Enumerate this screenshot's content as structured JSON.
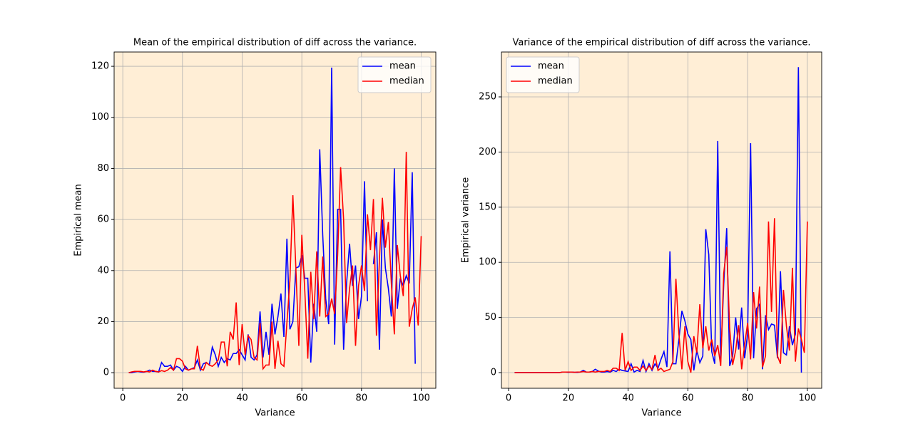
{
  "chart_data": [
    {
      "type": "line",
      "title": "Mean of the empirical distribution of diff across the variance.",
      "xlabel": "Variance",
      "ylabel": "Empirical mean",
      "x": [
        2,
        3,
        4,
        5,
        6,
        7,
        8,
        9,
        10,
        11,
        12,
        13,
        14,
        15,
        16,
        17,
        18,
        19,
        20,
        21,
        22,
        23,
        24,
        25,
        26,
        27,
        28,
        29,
        30,
        31,
        32,
        33,
        34,
        35,
        36,
        37,
        38,
        39,
        40,
        41,
        42,
        43,
        44,
        45,
        46,
        47,
        48,
        49,
        50,
        51,
        52,
        53,
        54,
        55,
        56,
        57,
        58,
        59,
        60,
        61,
        62,
        63,
        64,
        65,
        66,
        67,
        68,
        69,
        70,
        71,
        72,
        73,
        74,
        75,
        76,
        77,
        78,
        79,
        80,
        81,
        82,
        83,
        84,
        85,
        86,
        87,
        88,
        89,
        90,
        91,
        92,
        93,
        94,
        95,
        96,
        97,
        98,
        99,
        100
      ],
      "series": [
        {
          "name": "mean",
          "color": "#0000ff",
          "values": [
            0,
            0,
            0.3,
            0.5,
            0.3,
            0.2,
            0.5,
            1,
            0.5,
            0.5,
            0.3,
            4,
            2.5,
            2.5,
            3,
            1,
            2.5,
            2,
            0.5,
            2.5,
            1,
            1.5,
            2,
            5,
            1,
            3.5,
            4,
            3,
            10,
            7,
            2.5,
            6,
            4,
            5.5,
            5,
            7.5,
            7.5,
            9,
            7,
            5,
            15,
            6,
            5,
            7,
            24,
            6,
            16,
            7,
            27,
            15,
            22,
            31,
            14,
            52.5,
            17,
            20,
            41,
            41.5,
            46,
            37,
            37,
            4,
            27,
            16,
            87.5,
            54,
            29,
            19,
            119.5,
            11,
            64,
            64,
            9,
            35,
            50.5,
            34,
            42,
            21,
            30,
            75,
            28,
            null,
            42.5,
            55,
            9,
            60,
            41,
            33,
            22,
            80,
            25,
            37,
            34,
            38,
            35,
            78.5,
            3.5,
            null,
            null
          ]
        },
        {
          "name": "median",
          "color": "#ff0000",
          "values": [
            0,
            0.3,
            0.5,
            0.5,
            0.5,
            0.3,
            0.5,
            0.3,
            1,
            0.5,
            0.3,
            0.8,
            0.5,
            1,
            2,
            1,
            5.5,
            5.5,
            4.5,
            1.5,
            1,
            1.5,
            1.5,
            10.5,
            1.5,
            1,
            4,
            3,
            2.5,
            3.5,
            5,
            12,
            12,
            2.5,
            16,
            13,
            27.5,
            3,
            19,
            7,
            14.5,
            13,
            6,
            5,
            19.5,
            1.5,
            3,
            3,
            20,
            1.5,
            12.5,
            3.5,
            2.5,
            19.5,
            36,
            69.5,
            41,
            10.5,
            54,
            32,
            5.5,
            39.5,
            21,
            47.5,
            22,
            45.5,
            22,
            23,
            29,
            23,
            46,
            80.5,
            60,
            19.5,
            33,
            42,
            10.5,
            34,
            42,
            32,
            62,
            48,
            68,
            14.5,
            44,
            68.5,
            49,
            59,
            35,
            15,
            50,
            38,
            30,
            86.5,
            18,
            25,
            29.5,
            18.5,
            53.5
          ]
        }
      ],
      "xlim": [
        -2.9,
        104.9
      ],
      "ylim": [
        -6.1,
        125.6
      ],
      "xticks": [
        0,
        20,
        40,
        60,
        80,
        100
      ],
      "yticks": [
        0,
        20,
        40,
        60,
        80,
        100,
        120
      ],
      "grid": true,
      "legend": "upper right",
      "background": "#ffeed6"
    },
    {
      "type": "line",
      "title": "Variance of the empirical distribution of diff across the variance.",
      "xlabel": "Variance",
      "ylabel": "Empirical variance",
      "x": [
        2,
        3,
        4,
        5,
        6,
        7,
        8,
        9,
        10,
        11,
        12,
        13,
        14,
        15,
        16,
        17,
        18,
        19,
        20,
        21,
        22,
        23,
        24,
        25,
        26,
        27,
        28,
        29,
        30,
        31,
        32,
        33,
        34,
        35,
        36,
        37,
        38,
        39,
        40,
        41,
        42,
        43,
        44,
        45,
        46,
        47,
        48,
        49,
        50,
        51,
        52,
        53,
        54,
        55,
        56,
        57,
        58,
        59,
        60,
        61,
        62,
        63,
        64,
        65,
        66,
        67,
        68,
        69,
        70,
        71,
        72,
        73,
        74,
        75,
        76,
        77,
        78,
        79,
        80,
        81,
        82,
        83,
        84,
        85,
        86,
        87,
        88,
        89,
        90,
        91,
        92,
        93,
        94,
        95,
        96,
        97,
        98,
        99,
        100
      ],
      "series": [
        {
          "name": "mean",
          "color": "#0000ff",
          "values": [
            0,
            0,
            0,
            0,
            0,
            0,
            0,
            0,
            0,
            0,
            0,
            0,
            0,
            0,
            0,
            0,
            0.5,
            0.5,
            0.3,
            0.5,
            0.3,
            0.2,
            0.5,
            2,
            0.5,
            0.5,
            1,
            3,
            1.5,
            0.5,
            0.5,
            1,
            0.5,
            2,
            1,
            3,
            2,
            1.5,
            1,
            8,
            0.5,
            2,
            1,
            11,
            1,
            8,
            2,
            8,
            4,
            12,
            19,
            5,
            110,
            8,
            8,
            30,
            56,
            47,
            35,
            30,
            2,
            20,
            9,
            15,
            130,
            107,
            19,
            8,
            210,
            10,
            80,
            131,
            6,
            15,
            50,
            21,
            59,
            13,
            35,
            208,
            13,
            58,
            62,
            3,
            52,
            39,
            44,
            43,
            13,
            92,
            18,
            16,
            42,
            25,
            35,
            277,
            0,
            null,
            null
          ]
        },
        {
          "name": "median",
          "color": "#ff0000",
          "values": [
            0,
            0,
            0,
            0,
            0,
            0,
            0,
            0,
            0,
            0,
            0,
            0,
            0,
            0,
            0,
            0,
            0.5,
            0.5,
            0.5,
            0.5,
            0.3,
            0.5,
            0.5,
            1,
            0.5,
            0.5,
            1,
            0.5,
            1,
            1,
            1,
            2,
            1,
            4,
            4,
            2,
            36,
            2,
            10,
            2,
            5,
            5,
            2,
            6,
            2,
            6,
            3,
            16,
            2,
            4,
            1,
            2,
            3,
            10,
            85,
            35,
            3,
            42,
            10,
            0,
            33,
            18,
            62,
            22,
            42,
            20,
            30,
            15,
            25,
            6,
            90,
            114,
            40,
            7,
            20,
            43,
            3,
            25,
            45,
            12,
            73,
            40,
            78,
            5,
            15,
            137,
            55,
            140,
            15,
            8,
            75,
            42,
            20,
            95,
            10,
            40,
            30,
            18,
            137
          ]
        }
      ],
      "xlim": [
        -2.4,
        104.8
      ],
      "ylim": [
        -14.2,
        290.7
      ],
      "xticks": [
        0,
        20,
        40,
        60,
        80,
        100
      ],
      "yticks": [
        0,
        50,
        100,
        150,
        200,
        250
      ],
      "grid": true,
      "legend": "upper left",
      "background": "#ffeed6"
    }
  ]
}
